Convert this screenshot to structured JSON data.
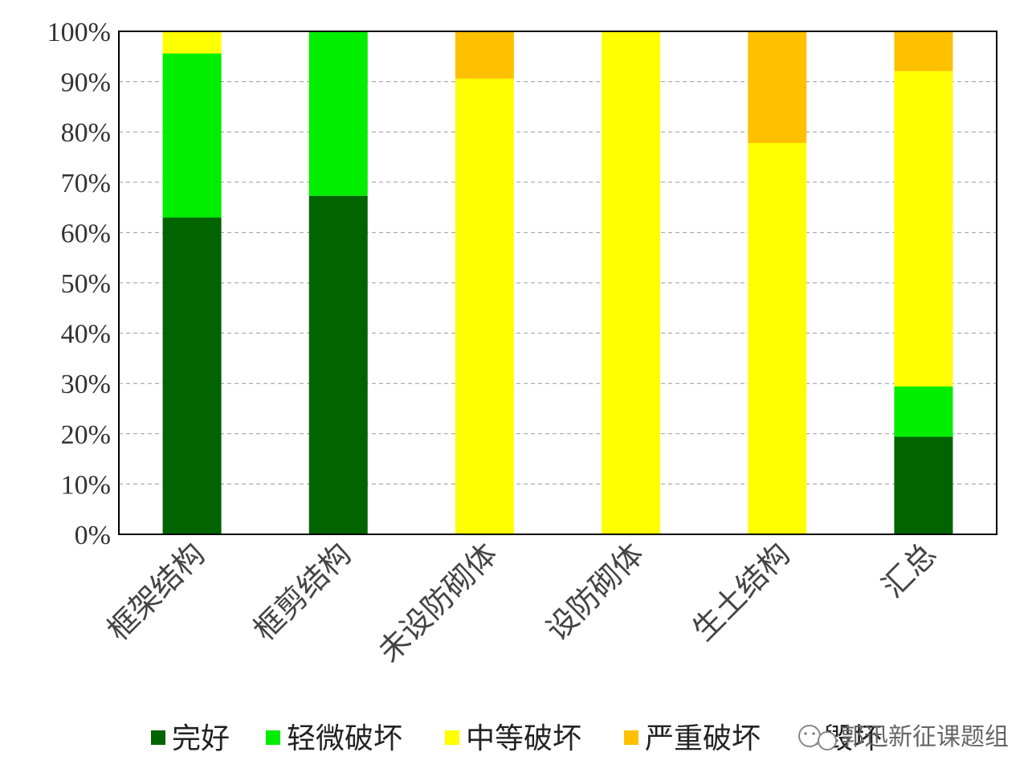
{
  "chart_data": {
    "type": "bar",
    "stacked": true,
    "normalized": true,
    "title": "",
    "xlabel": "",
    "ylabel": "",
    "ylim": [
      0,
      100
    ],
    "yticks": [
      "0%",
      "10%",
      "20%",
      "30%",
      "40%",
      "50%",
      "60%",
      "70%",
      "80%",
      "90%",
      "100%"
    ],
    "grid": "horizontal dashed",
    "legend_position": "bottom",
    "categories": [
      "框架结构",
      "框剪结构",
      "未设防砌体",
      "设防砌体",
      "生土结构",
      "汇总"
    ],
    "series": [
      {
        "name": "完好",
        "color": "#006400",
        "values": [
          63,
          67.3,
          0,
          0,
          0,
          19.4
        ]
      },
      {
        "name": "轻微破坏",
        "color": "#00ee00",
        "values": [
          32.6,
          32.7,
          0,
          0,
          0,
          10
        ]
      },
      {
        "name": "中等破坏",
        "color": "#ffff00",
        "values": [
          4.4,
          0,
          90.6,
          100,
          77.8,
          62.7
        ]
      },
      {
        "name": "严重破坏",
        "color": "#ffc000",
        "values": [
          0,
          0,
          9.4,
          0,
          22.2,
          7.9
        ]
      },
      {
        "name": "毁坏",
        "color": "#dd0000",
        "values": [
          0,
          0,
          0,
          0,
          0,
          0
        ]
      }
    ]
  },
  "watermark": {
    "text": "郭迅新征课题组",
    "icon": "wechat-icon"
  }
}
